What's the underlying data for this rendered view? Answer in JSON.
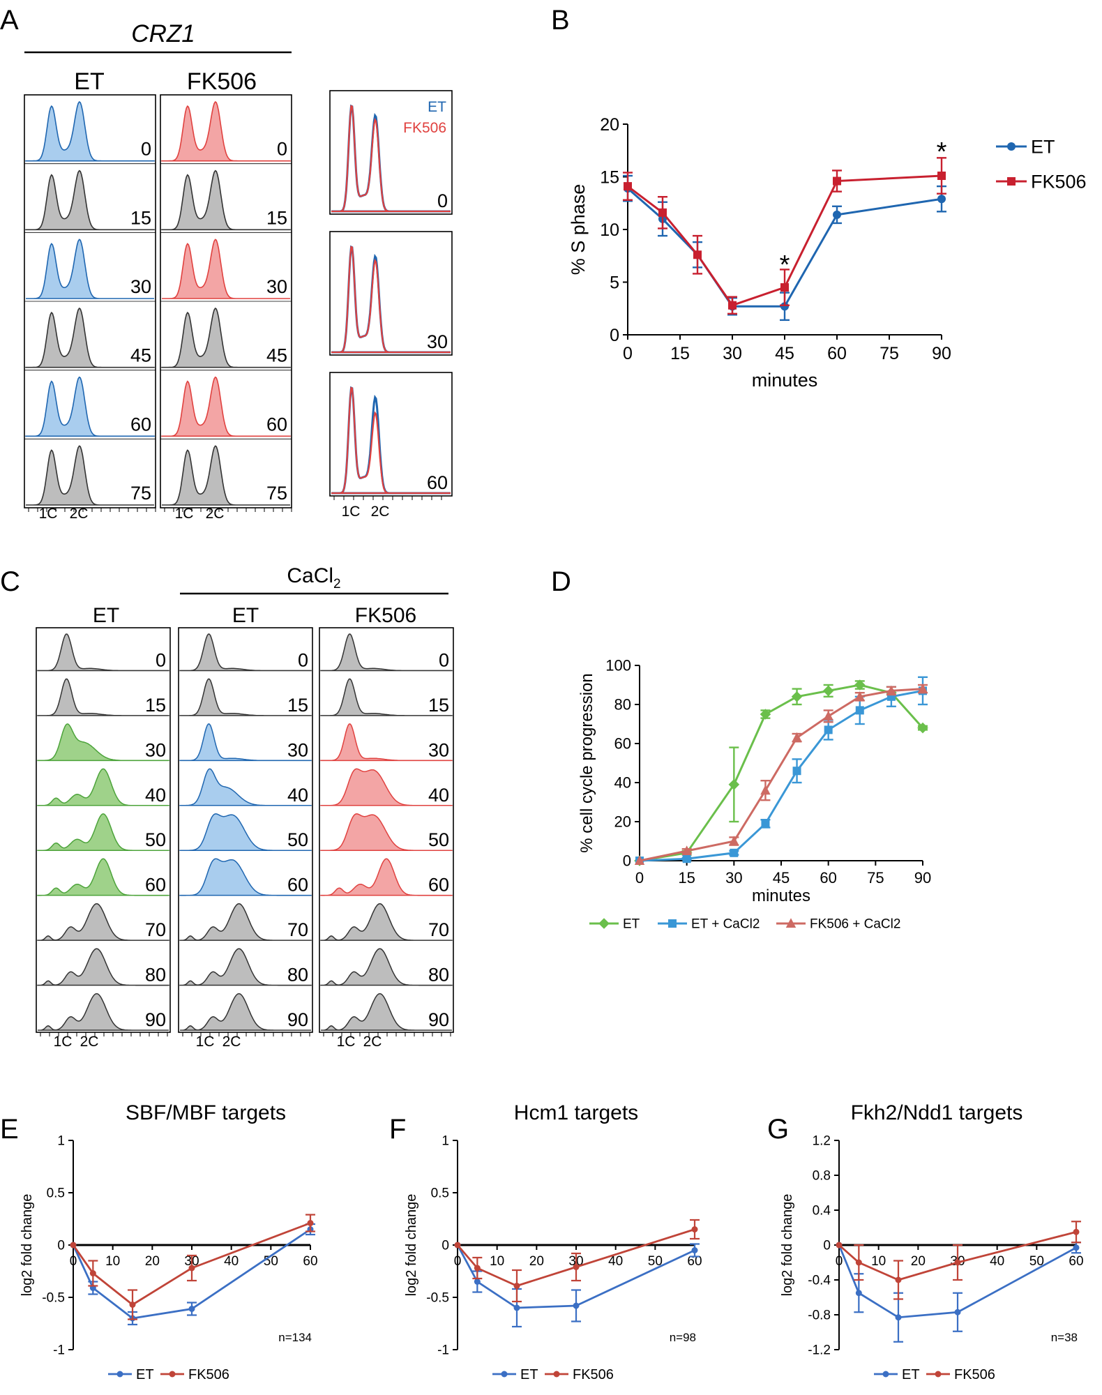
{
  "colors": {
    "et_blue": "#1f66b0",
    "fk506_red": "#c8202f",
    "d_green": "#6abf4b",
    "d_blue": "#3a97d6",
    "d_red": "#cd6a63",
    "hist_gray": "#bdbdbd",
    "hist_blue_fill": "#a9cdee",
    "hist_red_fill": "#f3a5a5",
    "hist_green_fill": "#9fd28a",
    "efg_blue": "#3b6fc4",
    "efg_red": "#c04438"
  },
  "panel_a": {
    "letter": "A",
    "gene": "CRZ1",
    "col_et": "ET",
    "col_fk": "FK506",
    "timepoints": [
      "0",
      "15",
      "30",
      "45",
      "60",
      "75"
    ],
    "tone": [
      "color",
      "gray",
      "color",
      "gray",
      "color",
      "gray"
    ],
    "axis_1c": "1C",
    "axis_2c": "2C",
    "overlay_legend_et": "ET",
    "overlay_legend_fk": "FK506",
    "overlay_timepoints": [
      "0",
      "30",
      "60"
    ]
  },
  "panel_c": {
    "letter": "C",
    "treatment_main": "CaCl",
    "treatment_sub": "2",
    "col_et": "ET",
    "col_et_ca": "ET",
    "col_fk_ca": "FK506",
    "timepoints": [
      "0",
      "15",
      "30",
      "40",
      "50",
      "60",
      "70",
      "80",
      "90"
    ],
    "axis_1c": "1C",
    "axis_2c": "2C"
  },
  "chart_data": [
    {
      "panel": "B",
      "type": "line",
      "xlabel": "minutes",
      "ylabel": "% S phase",
      "xlim": [
        0,
        90
      ],
      "ylim": [
        0,
        20
      ],
      "xticks": [
        0,
        15,
        30,
        45,
        60,
        75,
        90
      ],
      "yticks": [
        0,
        5,
        10,
        15,
        20
      ],
      "legend_position": "top-right",
      "x": [
        0,
        10,
        20,
        30,
        45,
        60,
        90
      ],
      "series": [
        {
          "name": "ET",
          "values": [
            13.9,
            11.0,
            7.6,
            2.7,
            2.7,
            11.4,
            12.9
          ],
          "errors": [
            1.2,
            1.6,
            1.2,
            0.8,
            1.3,
            0.8,
            1.2
          ]
        },
        {
          "name": "FK506",
          "values": [
            14.1,
            11.6,
            7.6,
            2.8,
            4.5,
            14.6,
            15.1
          ],
          "errors": [
            1.3,
            1.5,
            1.8,
            0.8,
            1.7,
            1.0,
            1.7
          ]
        }
      ],
      "annotations": [
        {
          "x": 45,
          "y": 6.9,
          "text": "*"
        },
        {
          "x": 90,
          "y": 17.6,
          "text": "*"
        }
      ]
    },
    {
      "panel": "D",
      "type": "line",
      "xlabel": "minutes",
      "ylabel": "% cell cycle progression",
      "xlim": [
        0,
        90
      ],
      "ylim": [
        0,
        100
      ],
      "xticks": [
        0,
        15,
        30,
        45,
        60,
        75,
        90
      ],
      "yticks": [
        0,
        20,
        40,
        60,
        80,
        100
      ],
      "legend_position": "bottom",
      "x": [
        0,
        15,
        30,
        40,
        50,
        60,
        70,
        80,
        90
      ],
      "series": [
        {
          "name": "ET",
          "values": [
            0,
            4,
            39,
            75,
            84,
            87,
            90,
            86,
            68
          ],
          "errors": [
            0,
            1,
            19,
            2,
            4,
            3,
            2,
            3,
            1
          ]
        },
        {
          "name": "ET + CaCl2",
          "values": [
            0,
            1,
            4,
            19,
            46,
            67,
            77,
            84,
            87
          ],
          "errors": [
            0,
            0.5,
            1,
            2,
            6,
            5,
            7,
            5,
            7
          ]
        },
        {
          "name": "FK506 + CaCl2",
          "values": [
            0,
            5,
            10,
            36,
            63,
            74,
            84,
            87,
            88
          ],
          "errors": [
            0,
            1,
            2,
            5,
            2,
            3,
            2,
            2,
            2
          ]
        }
      ]
    },
    {
      "panel": "E",
      "type": "line",
      "title": "SBF/MBF targets",
      "ylabel": "log2 fold change",
      "xlim": [
        0,
        60
      ],
      "ylim": [
        -1,
        1
      ],
      "xticks": [
        0,
        10,
        20,
        30,
        40,
        50,
        60
      ],
      "yticks": [
        -1,
        -0.5,
        0,
        0.5,
        1
      ],
      "n_label": "n=134",
      "legend_position": "bottom",
      "x": [
        0,
        5,
        15,
        30,
        60
      ],
      "series": [
        {
          "name": "ET",
          "values": [
            0,
            -0.41,
            -0.7,
            -0.61,
            0.15
          ],
          "errors": [
            0,
            0.06,
            0.06,
            0.06,
            0.05
          ]
        },
        {
          "name": "FK506",
          "values": [
            0,
            -0.27,
            -0.57,
            -0.22,
            0.21
          ],
          "errors": [
            0,
            0.12,
            0.14,
            0.12,
            0.08
          ]
        }
      ]
    },
    {
      "panel": "F",
      "type": "line",
      "title": "Hcm1 targets",
      "ylabel": "log2 fold change",
      "xlim": [
        0,
        60
      ],
      "ylim": [
        -1,
        1
      ],
      "xticks": [
        0,
        10,
        20,
        30,
        40,
        50,
        60
      ],
      "yticks": [
        -1,
        -0.5,
        0,
        0.5,
        1
      ],
      "n_label": "n=98",
      "legend_position": "bottom",
      "x": [
        0,
        5,
        15,
        30,
        60
      ],
      "series": [
        {
          "name": "ET",
          "values": [
            0,
            -0.35,
            -0.6,
            -0.58,
            -0.05
          ],
          "errors": [
            0,
            0.1,
            0.18,
            0.15,
            0.06
          ]
        },
        {
          "name": "FK506",
          "values": [
            0,
            -0.22,
            -0.39,
            -0.21,
            0.15
          ],
          "errors": [
            0,
            0.1,
            0.15,
            0.13,
            0.09
          ]
        }
      ]
    },
    {
      "panel": "G",
      "type": "line",
      "title": "Fkh2/Ndd1 targets",
      "ylabel": "log2 fold change",
      "xlim": [
        0,
        60
      ],
      "ylim": [
        -1.2,
        1.2
      ],
      "xticks": [
        0,
        10,
        20,
        30,
        40,
        50,
        60
      ],
      "yticks": [
        -1.2,
        -0.8,
        -0.4,
        0,
        0.4,
        0.8,
        1.2
      ],
      "n_label": "n=38",
      "legend_position": "bottom",
      "x": [
        0,
        5,
        15,
        30,
        60
      ],
      "series": [
        {
          "name": "ET",
          "values": [
            0,
            -0.55,
            -0.83,
            -0.77,
            -0.03
          ],
          "errors": [
            0,
            0.22,
            0.28,
            0.22,
            0.06
          ]
        },
        {
          "name": "FK506",
          "values": [
            0,
            -0.2,
            -0.4,
            -0.2,
            0.15
          ],
          "errors": [
            0,
            0.2,
            0.22,
            0.2,
            0.12
          ]
        }
      ]
    }
  ]
}
